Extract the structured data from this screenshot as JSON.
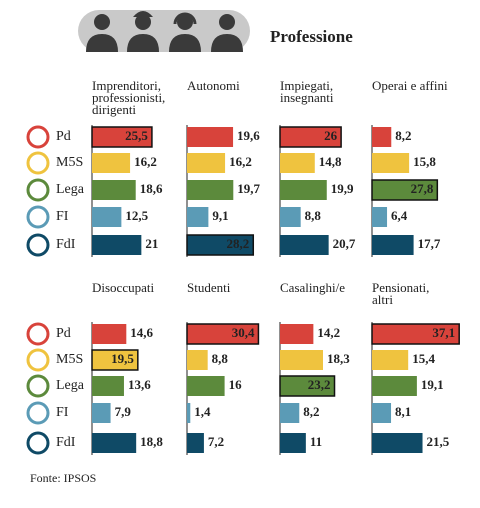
{
  "title": "Professione",
  "source": "Fonte: IPSOS",
  "categories": [
    "Pd",
    "M5S",
    "Lega",
    "FI",
    "FdI"
  ],
  "colors": [
    "#d8433b",
    "#efc33f",
    "#5c8a3c",
    "#5b9bb6",
    "#0f4a66"
  ],
  "chart_data": [
    {
      "type": "bar",
      "title": "Imprenditori, professionisti, dirigenti",
      "values": [
        25.5,
        16.2,
        18.6,
        12.5,
        21
      ],
      "value_labels": [
        "25,5",
        "16,2",
        "18,6",
        "12,5",
        "21"
      ],
      "highlight": 0,
      "xlim": [
        0,
        40
      ]
    },
    {
      "type": "bar",
      "title": "Autonomi",
      "values": [
        19.6,
        16.2,
        19.7,
        9.1,
        28.2
      ],
      "value_labels": [
        "19,6",
        "16,2",
        "19,7",
        "9,1",
        "28,2"
      ],
      "highlight": 4,
      "xlim": [
        0,
        40
      ]
    },
    {
      "type": "bar",
      "title": "Impiegati, insegnanti",
      "values": [
        26,
        14.8,
        19.9,
        8.8,
        20.7
      ],
      "value_labels": [
        "26",
        "14,8",
        "19,9",
        "8,8",
        "20,7"
      ],
      "highlight": 0,
      "xlim": [
        0,
        40
      ]
    },
    {
      "type": "bar",
      "title": "Operai e affini",
      "values": [
        8.2,
        15.8,
        27.8,
        6.4,
        17.7
      ],
      "value_labels": [
        "8,2",
        "15,8",
        "27,8",
        "6,4",
        "17,7"
      ],
      "highlight": 2,
      "xlim": [
        0,
        40
      ]
    },
    {
      "type": "bar",
      "title": "Disoccupati",
      "values": [
        14.6,
        19.5,
        13.6,
        7.9,
        18.8
      ],
      "value_labels": [
        "14,6",
        "19,5",
        "13,6",
        "7,9",
        "18,8"
      ],
      "highlight": 1,
      "xlim": [
        0,
        40
      ]
    },
    {
      "type": "bar",
      "title": "Studenti",
      "values": [
        30.4,
        8.8,
        16,
        1.4,
        7.2
      ],
      "value_labels": [
        "30,4",
        "8,8",
        "16",
        "1,4",
        "7,2"
      ],
      "highlight": 0,
      "xlim": [
        0,
        40
      ]
    },
    {
      "type": "bar",
      "title": "Casalinghi/e",
      "values": [
        14.2,
        18.3,
        23.2,
        8.2,
        11
      ],
      "value_labels": [
        "14,2",
        "18,3",
        "23,2",
        "8,2",
        "11"
      ],
      "highlight": 2,
      "xlim": [
        0,
        40
      ]
    },
    {
      "type": "bar",
      "title": "Pensionati, altri",
      "values": [
        37.1,
        15.4,
        19.1,
        8.1,
        21.5
      ],
      "value_labels": [
        "37,1",
        "15,4",
        "19,1",
        "8,1",
        "21,5"
      ],
      "highlight": 0,
      "xlim": [
        0,
        40
      ]
    }
  ]
}
